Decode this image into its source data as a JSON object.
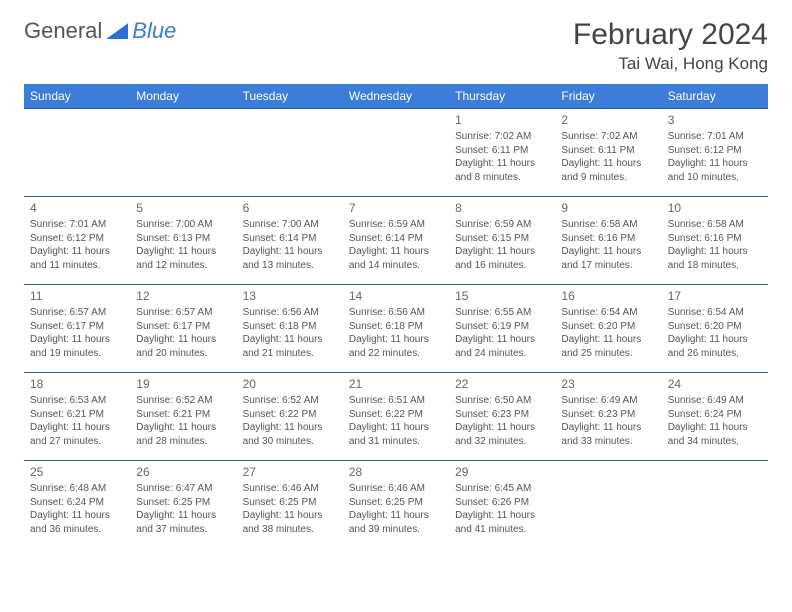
{
  "logo": {
    "text1": "General",
    "text2": "Blue"
  },
  "title": {
    "month": "February 2024",
    "location": "Tai Wai, Hong Kong"
  },
  "weekdays": [
    "Sunday",
    "Monday",
    "Tuesday",
    "Wednesday",
    "Thursday",
    "Friday",
    "Saturday"
  ],
  "colors": {
    "header_bg": "#3b7dd8",
    "border": "#2b5a9e",
    "text": "#555"
  },
  "weeks": [
    [
      {
        "n": "",
        "s": "",
        "u": "",
        "d": ""
      },
      {
        "n": "",
        "s": "",
        "u": "",
        "d": ""
      },
      {
        "n": "",
        "s": "",
        "u": "",
        "d": ""
      },
      {
        "n": "",
        "s": "",
        "u": "",
        "d": ""
      },
      {
        "n": "1",
        "s": "Sunrise: 7:02 AM",
        "u": "Sunset: 6:11 PM",
        "d": "Daylight: 11 hours and 8 minutes."
      },
      {
        "n": "2",
        "s": "Sunrise: 7:02 AM",
        "u": "Sunset: 6:11 PM",
        "d": "Daylight: 11 hours and 9 minutes."
      },
      {
        "n": "3",
        "s": "Sunrise: 7:01 AM",
        "u": "Sunset: 6:12 PM",
        "d": "Daylight: 11 hours and 10 minutes."
      }
    ],
    [
      {
        "n": "4",
        "s": "Sunrise: 7:01 AM",
        "u": "Sunset: 6:12 PM",
        "d": "Daylight: 11 hours and 11 minutes."
      },
      {
        "n": "5",
        "s": "Sunrise: 7:00 AM",
        "u": "Sunset: 6:13 PM",
        "d": "Daylight: 11 hours and 12 minutes."
      },
      {
        "n": "6",
        "s": "Sunrise: 7:00 AM",
        "u": "Sunset: 6:14 PM",
        "d": "Daylight: 11 hours and 13 minutes."
      },
      {
        "n": "7",
        "s": "Sunrise: 6:59 AM",
        "u": "Sunset: 6:14 PM",
        "d": "Daylight: 11 hours and 14 minutes."
      },
      {
        "n": "8",
        "s": "Sunrise: 6:59 AM",
        "u": "Sunset: 6:15 PM",
        "d": "Daylight: 11 hours and 16 minutes."
      },
      {
        "n": "9",
        "s": "Sunrise: 6:58 AM",
        "u": "Sunset: 6:16 PM",
        "d": "Daylight: 11 hours and 17 minutes."
      },
      {
        "n": "10",
        "s": "Sunrise: 6:58 AM",
        "u": "Sunset: 6:16 PM",
        "d": "Daylight: 11 hours and 18 minutes."
      }
    ],
    [
      {
        "n": "11",
        "s": "Sunrise: 6:57 AM",
        "u": "Sunset: 6:17 PM",
        "d": "Daylight: 11 hours and 19 minutes."
      },
      {
        "n": "12",
        "s": "Sunrise: 6:57 AM",
        "u": "Sunset: 6:17 PM",
        "d": "Daylight: 11 hours and 20 minutes."
      },
      {
        "n": "13",
        "s": "Sunrise: 6:56 AM",
        "u": "Sunset: 6:18 PM",
        "d": "Daylight: 11 hours and 21 minutes."
      },
      {
        "n": "14",
        "s": "Sunrise: 6:56 AM",
        "u": "Sunset: 6:18 PM",
        "d": "Daylight: 11 hours and 22 minutes."
      },
      {
        "n": "15",
        "s": "Sunrise: 6:55 AM",
        "u": "Sunset: 6:19 PM",
        "d": "Daylight: 11 hours and 24 minutes."
      },
      {
        "n": "16",
        "s": "Sunrise: 6:54 AM",
        "u": "Sunset: 6:20 PM",
        "d": "Daylight: 11 hours and 25 minutes."
      },
      {
        "n": "17",
        "s": "Sunrise: 6:54 AM",
        "u": "Sunset: 6:20 PM",
        "d": "Daylight: 11 hours and 26 minutes."
      }
    ],
    [
      {
        "n": "18",
        "s": "Sunrise: 6:53 AM",
        "u": "Sunset: 6:21 PM",
        "d": "Daylight: 11 hours and 27 minutes."
      },
      {
        "n": "19",
        "s": "Sunrise: 6:52 AM",
        "u": "Sunset: 6:21 PM",
        "d": "Daylight: 11 hours and 28 minutes."
      },
      {
        "n": "20",
        "s": "Sunrise: 6:52 AM",
        "u": "Sunset: 6:22 PM",
        "d": "Daylight: 11 hours and 30 minutes."
      },
      {
        "n": "21",
        "s": "Sunrise: 6:51 AM",
        "u": "Sunset: 6:22 PM",
        "d": "Daylight: 11 hours and 31 minutes."
      },
      {
        "n": "22",
        "s": "Sunrise: 6:50 AM",
        "u": "Sunset: 6:23 PM",
        "d": "Daylight: 11 hours and 32 minutes."
      },
      {
        "n": "23",
        "s": "Sunrise: 6:49 AM",
        "u": "Sunset: 6:23 PM",
        "d": "Daylight: 11 hours and 33 minutes."
      },
      {
        "n": "24",
        "s": "Sunrise: 6:49 AM",
        "u": "Sunset: 6:24 PM",
        "d": "Daylight: 11 hours and 34 minutes."
      }
    ],
    [
      {
        "n": "25",
        "s": "Sunrise: 6:48 AM",
        "u": "Sunset: 6:24 PM",
        "d": "Daylight: 11 hours and 36 minutes."
      },
      {
        "n": "26",
        "s": "Sunrise: 6:47 AM",
        "u": "Sunset: 6:25 PM",
        "d": "Daylight: 11 hours and 37 minutes."
      },
      {
        "n": "27",
        "s": "Sunrise: 6:46 AM",
        "u": "Sunset: 6:25 PM",
        "d": "Daylight: 11 hours and 38 minutes."
      },
      {
        "n": "28",
        "s": "Sunrise: 6:46 AM",
        "u": "Sunset: 6:25 PM",
        "d": "Daylight: 11 hours and 39 minutes."
      },
      {
        "n": "29",
        "s": "Sunrise: 6:45 AM",
        "u": "Sunset: 6:26 PM",
        "d": "Daylight: 11 hours and 41 minutes."
      },
      {
        "n": "",
        "s": "",
        "u": "",
        "d": ""
      },
      {
        "n": "",
        "s": "",
        "u": "",
        "d": ""
      }
    ]
  ]
}
